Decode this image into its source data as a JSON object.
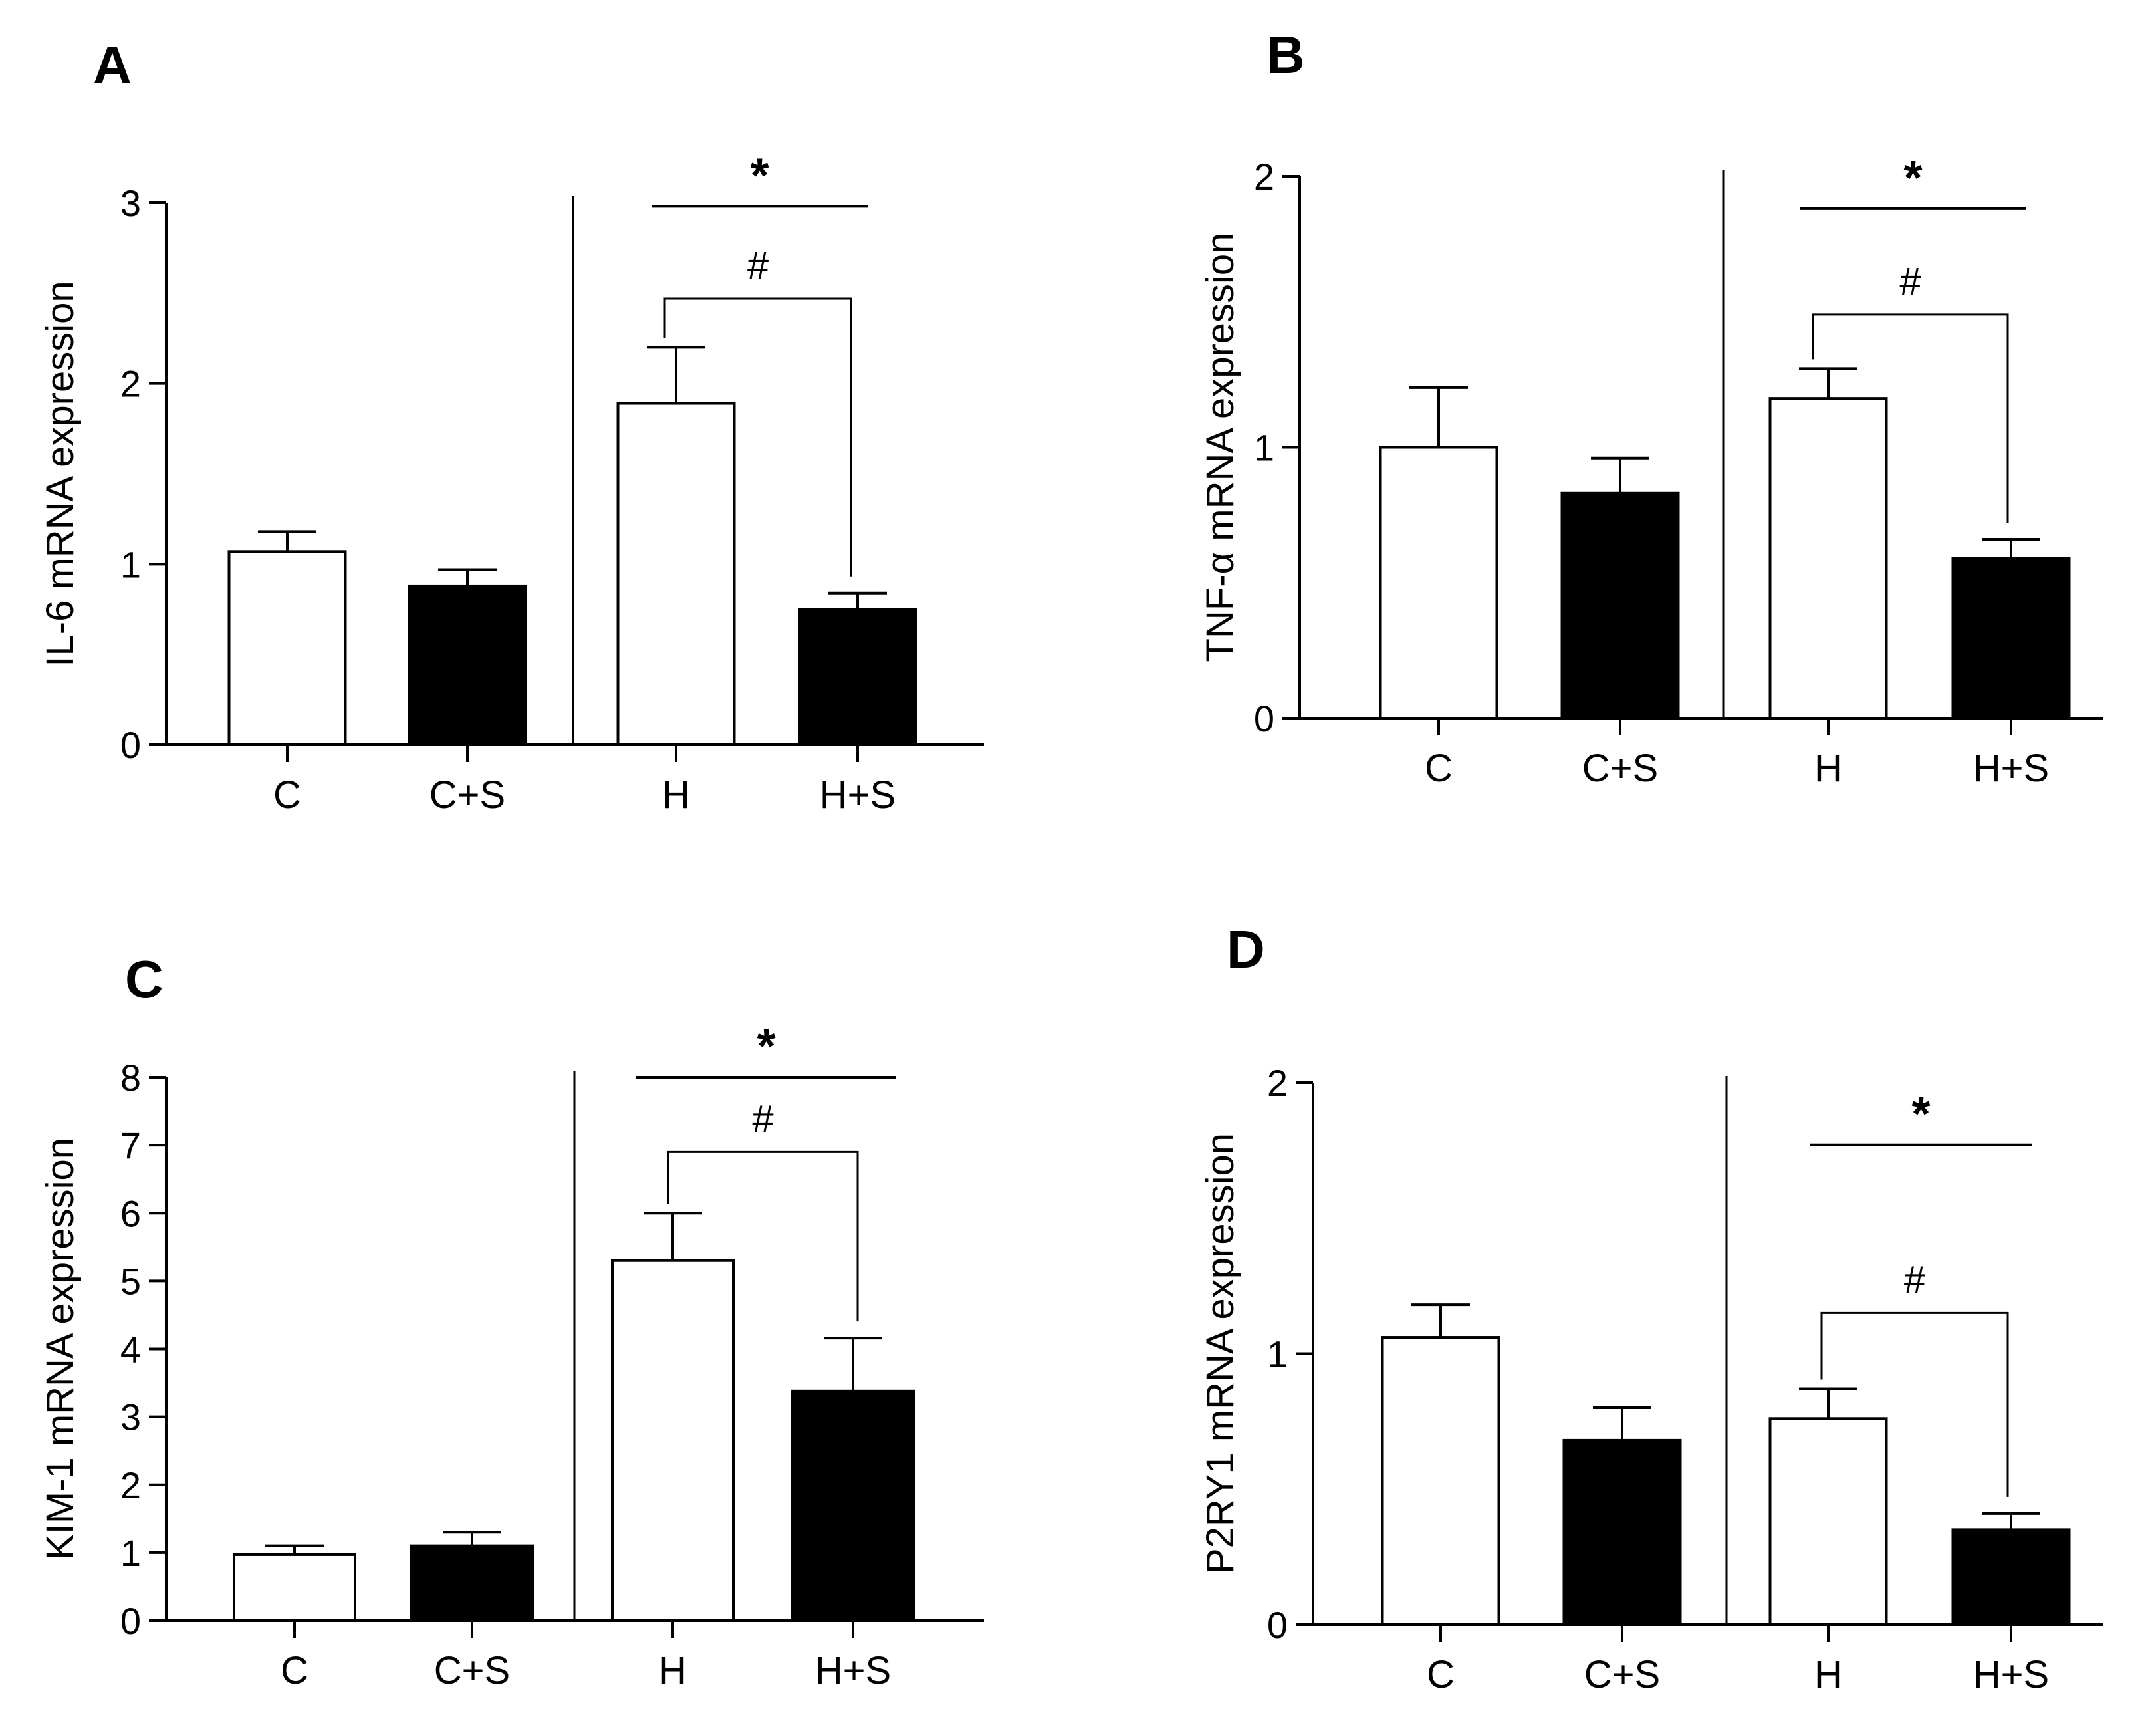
{
  "figure": {
    "colors": {
      "control": "#ffffff",
      "treated": "#000000",
      "stroke": "#000000"
    }
  },
  "chart_data": [
    {
      "panel": "A",
      "type": "bar",
      "ylabel": "IL-6 mRNA expression",
      "ylim": [
        0,
        3
      ],
      "yticks": [
        "0",
        "1",
        "2",
        "3"
      ],
      "categories": [
        "C",
        "C+S",
        "H",
        "H+S"
      ],
      "values": [
        1.07,
        0.88,
        1.89,
        0.75
      ],
      "errors": [
        0.11,
        0.09,
        0.31,
        0.09
      ],
      "fills": [
        "white",
        "black",
        "white",
        "black"
      ],
      "sig": {
        "star": "*",
        "hash": "#",
        "star_y": 2.98,
        "bracket_y": 2.47
      }
    },
    {
      "panel": "B",
      "type": "bar",
      "ylabel": "TNF-α mRNA expression",
      "ylim": [
        0,
        2
      ],
      "yticks": [
        "0",
        "1",
        "2"
      ],
      "categories": [
        "C",
        "C+S",
        "H",
        "H+S"
      ],
      "values": [
        1.0,
        0.83,
        1.18,
        0.59
      ],
      "errors": [
        0.22,
        0.13,
        0.11,
        0.07
      ],
      "fills": [
        "white",
        "black",
        "white",
        "black"
      ],
      "sig": {
        "star": "*",
        "hash": "#",
        "star_y": 1.88,
        "bracket_y": 1.49
      }
    },
    {
      "panel": "C",
      "type": "bar",
      "ylabel": "KIM-1 mRNA expression",
      "ylim": [
        0,
        8
      ],
      "yticks": [
        "0",
        "1",
        "2",
        "3",
        "4",
        "5",
        "6",
        "7",
        "8"
      ],
      "categories": [
        "C",
        "C+S",
        "H",
        "H+S"
      ],
      "values": [
        0.97,
        1.1,
        5.3,
        3.38
      ],
      "errors": [
        0.13,
        0.2,
        0.7,
        0.78
      ],
      "fills": [
        "white",
        "black",
        "white",
        "black"
      ],
      "sig": {
        "star": "*",
        "hash": "#",
        "star_y": 8.0,
        "bracket_y": 6.9
      }
    },
    {
      "panel": "D",
      "type": "bar",
      "ylabel": "P2RY1 mRNA expression",
      "ylim": [
        0,
        2
      ],
      "yticks": [
        "0",
        "1",
        "2"
      ],
      "categories": [
        "C",
        "C+S",
        "H",
        "H+S"
      ],
      "values": [
        1.06,
        0.68,
        0.76,
        0.35
      ],
      "errors": [
        0.12,
        0.12,
        0.11,
        0.06
      ],
      "fills": [
        "white",
        "black",
        "white",
        "black"
      ],
      "sig": {
        "star": "*",
        "hash": "#",
        "star_y": 1.77,
        "bracket_y": 1.15
      }
    }
  ]
}
